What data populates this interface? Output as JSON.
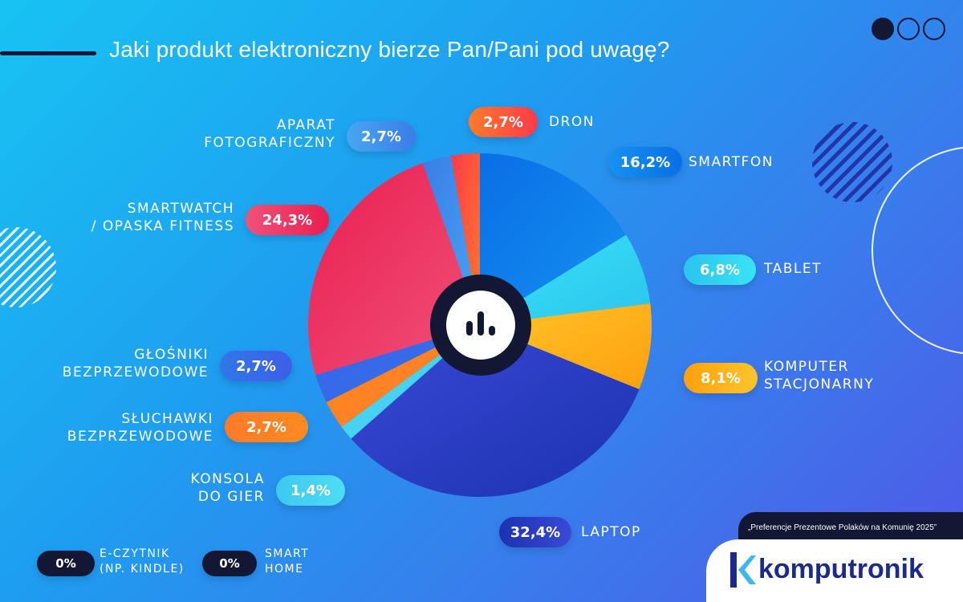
{
  "title": "Jaki produkt elektroniczny bierze Pan/Pani pod uwagę?",
  "caption": "„Preferencje Prezentowe Polaków na Komunię 2025”",
  "brand": "komputronik",
  "colors": {
    "background_start": "#18c3f2",
    "background_end": "#5157e6",
    "dark": "#121833"
  },
  "chart_data": {
    "type": "pie",
    "title": "Jaki produkt elektroniczny bierze Pan/Pani pod uwagę?",
    "unit": "%",
    "start": "top, clockwise",
    "categories": [
      "SMARTFON",
      "TABLET",
      "KOMPUTER STACJONARNY",
      "LAPTOP",
      "KONSOLA DO GIER",
      "SŁUCHAWKI BEZPRZEWODOWE",
      "GŁOŚNIKI BEZPRZEWODOWE",
      "SMARTWATCH / OPASKA FITNESS",
      "APARAT FOTOGRAFICZNY",
      "DRON",
      "E-CZYTNIK (NP. KINDLE)",
      "SMART HOME"
    ],
    "values": [
      16.2,
      6.8,
      8.1,
      32.4,
      1.4,
      2.7,
      2.7,
      24.3,
      2.7,
      2.7,
      0,
      0
    ],
    "data_labels": [
      "16,2%",
      "6,8%",
      "8,1%",
      "32,4%",
      "1,4%",
      "2,7%",
      "2,7%",
      "24,3%",
      "2,7%",
      "2,7%",
      "0%",
      "0%"
    ],
    "label_lines": [
      [
        "SMARTFON"
      ],
      [
        "TABLET"
      ],
      [
        "KOMPUTER",
        "STACJONARNY"
      ],
      [
        "LAPTOP"
      ],
      [
        "KONSOLA",
        "DO GIER"
      ],
      [
        "SŁUCHAWKI",
        "BEZPRZEWODOWE"
      ],
      [
        "GŁOŚNIKI",
        "BEZPRZEWODOWE"
      ],
      [
        "SMARTWATCH",
        "/ OPASKA FITNESS"
      ],
      [
        "APARAT",
        "FOTOGRAFICZNY"
      ],
      [
        "DRON"
      ],
      [
        "E-CZYTNIK",
        "(NP. KINDLE)"
      ],
      [
        "SMART",
        "HOME"
      ]
    ],
    "colors": [
      [
        "#0a6ee6",
        "#1592f0"
      ],
      [
        "#38e3f5",
        "#2cc4ee"
      ],
      [
        "#ffc52a",
        "#ff9f10"
      ],
      [
        "#3a49d6",
        "#1b32b0"
      ],
      [
        "#4fdcf5",
        "#3cc9f0"
      ],
      [
        "#ff8a1e",
        "#ff7a2a"
      ],
      [
        "#3e5ee8",
        "#2f78e8"
      ],
      [
        "#e91e50",
        "#f0527a"
      ],
      [
        "#3a7de8",
        "#47a6f0"
      ],
      [
        "#ff3a4a",
        "#ff7a2a"
      ],
      [
        "#121833",
        "#121833"
      ],
      [
        "#121833",
        "#121833"
      ]
    ]
  }
}
